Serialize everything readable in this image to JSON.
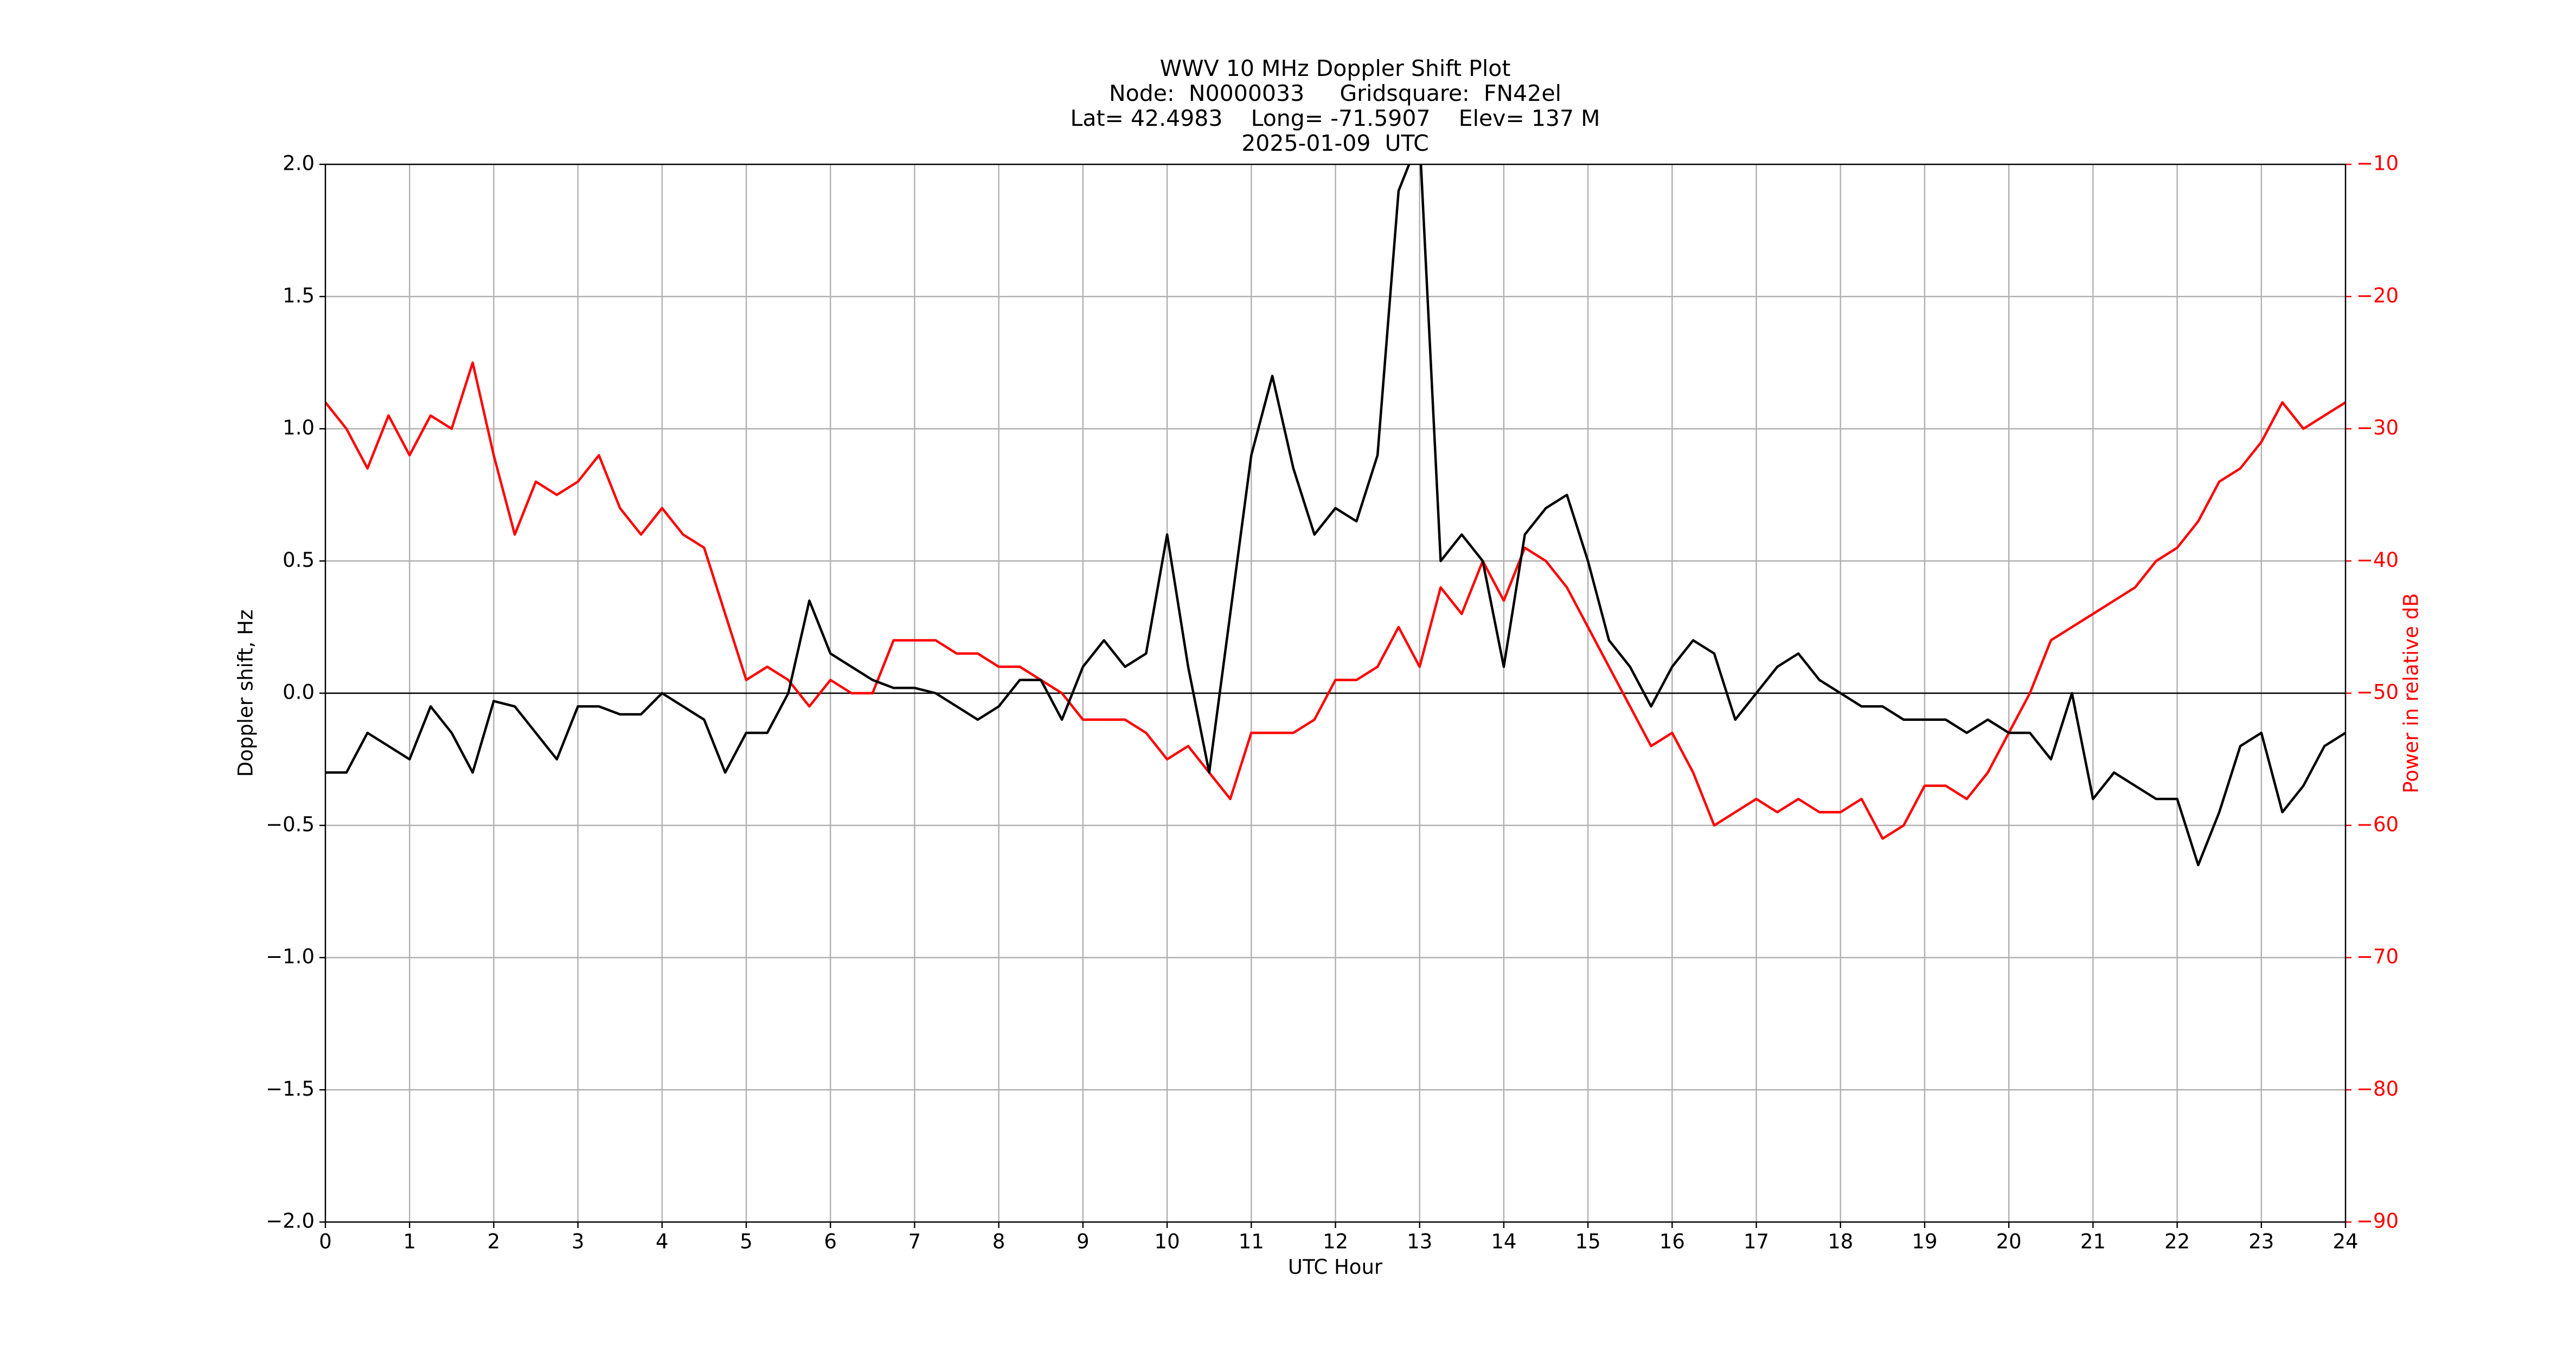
{
  "chart_data": {
    "type": "line",
    "title": [
      "WWV 10 MHz Doppler Shift Plot",
      "Node:  N0000033     Gridsquare:  FN42el",
      "Lat= 42.4983    Long= -71.5907    Elev= 137 M",
      "2025-01-09  UTC"
    ],
    "x_label": "UTC Hour",
    "y_label": "Doppler shift, Hz",
    "y2_label": "Power in relative dB",
    "x": [
      0,
      0.25,
      0.5,
      0.75,
      1,
      1.25,
      1.5,
      1.75,
      2,
      2.25,
      2.5,
      2.75,
      3,
      3.25,
      3.5,
      3.75,
      4,
      4.25,
      4.5,
      4.75,
      5,
      5.25,
      5.5,
      5.75,
      6,
      6.25,
      6.5,
      6.75,
      7,
      7.25,
      7.5,
      7.75,
      8,
      8.25,
      8.5,
      8.75,
      9,
      9.25,
      9.5,
      9.75,
      10,
      10.25,
      10.5,
      10.75,
      11,
      11.25,
      11.5,
      11.75,
      12,
      12.25,
      12.5,
      12.75,
      13,
      13.25,
      13.5,
      13.75,
      14,
      14.25,
      14.5,
      14.75,
      15,
      15.25,
      15.5,
      15.75,
      16,
      16.25,
      16.5,
      16.75,
      17,
      17.25,
      17.5,
      17.75,
      18,
      18.25,
      18.5,
      18.75,
      19,
      19.25,
      19.5,
      19.75,
      20,
      20.25,
      20.5,
      20.75,
      21,
      21.25,
      21.5,
      21.75,
      22,
      22.25,
      22.5,
      22.75,
      23,
      23.25,
      23.5,
      23.75,
      24
    ],
    "series": [
      {
        "color": "#000000",
        "values": [
          -0.3,
          -0.3,
          -0.15,
          -0.2,
          -0.25,
          -0.05,
          -0.15,
          -0.3,
          -0.03,
          -0.05,
          -0.15,
          -0.25,
          -0.05,
          -0.05,
          -0.08,
          -0.08,
          0.0,
          -0.05,
          -0.1,
          -0.3,
          -0.15,
          -0.15,
          0.0,
          0.35,
          0.15,
          0.1,
          0.05,
          0.02,
          0.02,
          0.0,
          -0.05,
          -0.1,
          -0.05,
          0.05,
          0.05,
          -0.1,
          0.1,
          0.2,
          0.1,
          0.15,
          0.6,
          0.1,
          -0.3,
          0.3,
          0.9,
          1.2,
          0.85,
          0.6,
          0.7,
          0.65,
          0.9,
          1.9,
          2.1,
          0.5,
          0.6,
          0.5,
          0.1,
          0.6,
          0.7,
          0.75,
          0.5,
          0.2,
          0.1,
          -0.05,
          0.1,
          0.2,
          0.15,
          -0.1,
          0.0,
          0.1,
          0.15,
          0.05,
          0.0,
          -0.05,
          -0.05,
          -0.1,
          -0.1,
          -0.1,
          -0.15,
          -0.1,
          -0.15,
          -0.15,
          -0.25,
          0.0,
          -0.4,
          -0.3,
          -0.35,
          -0.4,
          -0.4,
          -0.65,
          -0.45,
          -0.2,
          -0.15,
          -0.45,
          -0.35,
          -0.2,
          -0.15
        ]
      },
      {
        "color": "#ff0000",
        "axis": "y2",
        "values": [
          -28,
          -30,
          -33,
          -29,
          -32,
          -29,
          -30,
          -25,
          -32,
          -38,
          -34,
          -35,
          -34,
          -32,
          -36,
          -38,
          -36,
          -38,
          -39,
          -44,
          -49,
          -48,
          -49,
          -51,
          -49,
          -50,
          -50,
          -46,
          -46,
          -46,
          -47,
          -47,
          -48,
          -48,
          -49,
          -50,
          -52,
          -52,
          -52,
          -53,
          -55,
          -54,
          -56,
          -58,
          -53,
          -53,
          -53,
          -52,
          -49,
          -49,
          -48,
          -45,
          -48,
          -42,
          -44,
          -40,
          -43,
          -39,
          -40,
          -42,
          -45,
          -48,
          -51,
          -54,
          -53,
          -56,
          -60,
          -59,
          -58,
          -59,
          -58,
          -59,
          -59,
          -58,
          -61,
          -60,
          -57,
          -57,
          -58,
          -56,
          -53,
          -50,
          -46,
          -45,
          -44,
          -43,
          -42,
          -40,
          -39,
          -37,
          -34,
          -33,
          -31,
          -28,
          -30,
          -29,
          -28
        ]
      }
    ],
    "xlim": [
      0,
      24
    ],
    "xticks": [
      0,
      1,
      2,
      3,
      4,
      5,
      6,
      7,
      8,
      9,
      10,
      11,
      12,
      13,
      14,
      15,
      16,
      17,
      18,
      19,
      20,
      21,
      22,
      23,
      24
    ],
    "ylim": [
      -2,
      2
    ],
    "yticks": [
      {
        "value": -2,
        "label": "−2.0"
      },
      {
        "value": -1.5,
        "label": "−1.5"
      },
      {
        "value": -1,
        "label": "−1.0"
      },
      {
        "value": -0.5,
        "label": "−0.5"
      },
      {
        "value": 0,
        "label": "0.0"
      },
      0.5,
      {
        "value": 1,
        "label": "1.0"
      },
      1.5,
      {
        "value": 2,
        "label": "2.0"
      }
    ],
    "y2lim": [
      -90,
      -10
    ],
    "y2ticks": [
      {
        "value": -90,
        "label": "−90"
      },
      {
        "value": -80,
        "label": "−80"
      },
      {
        "value": -70,
        "label": "−70"
      },
      {
        "value": -60,
        "label": "−60"
      },
      {
        "value": -50,
        "label": "−50"
      },
      {
        "value": -40,
        "label": "−40"
      },
      {
        "value": -30,
        "label": "−30"
      },
      {
        "value": -20,
        "label": "−20"
      },
      {
        "value": -10,
        "label": "−10"
      }
    ],
    "y2_color": "#ff0000",
    "grid": true,
    "zero_line": true
  }
}
